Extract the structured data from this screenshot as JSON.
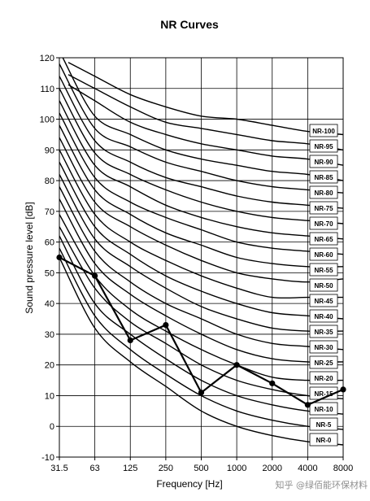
{
  "chart_data": {
    "type": "line",
    "title": "NR Curves",
    "xlabel": "Frequency [Hz]",
    "ylabel": "Sound pressure level [dB]",
    "x_categories": [
      "31.5",
      "63",
      "125",
      "250",
      "500",
      "1000",
      "2000",
      "4000",
      "8000"
    ],
    "ylim": [
      -10,
      120
    ],
    "yticks": [
      -10,
      0,
      10,
      20,
      30,
      40,
      50,
      60,
      70,
      80,
      90,
      100,
      110,
      120
    ],
    "grid": true,
    "nr_curves": [
      {
        "name": "NR-100",
        "values": [
          null,
          114,
          108,
          104,
          101,
          100,
          98,
          96,
          95
        ]
      },
      {
        "name": "NR-95",
        "values": [
          null,
          110,
          104,
          99,
          97,
          95,
          93,
          92,
          90
        ]
      },
      {
        "name": "NR-90",
        "values": [
          null,
          106,
          99,
          95,
          92,
          90,
          88,
          87,
          85
        ]
      },
      {
        "name": "NR-85",
        "values": [
          122,
          101,
          95,
          90,
          87,
          85,
          83,
          82,
          80
        ]
      },
      {
        "name": "NR-80",
        "values": [
          118,
          97,
          91,
          86,
          83,
          80,
          78,
          77,
          76
        ]
      },
      {
        "name": "NR-75",
        "values": [
          114,
          93,
          86,
          81,
          78,
          75,
          73,
          72,
          71
        ]
      },
      {
        "name": "NR-70",
        "values": [
          110,
          89,
          82,
          77,
          73,
          70,
          68,
          67,
          66
        ]
      },
      {
        "name": "NR-65",
        "values": [
          106,
          85,
          78,
          72,
          68,
          65,
          63,
          62,
          61
        ]
      },
      {
        "name": "NR-60",
        "values": [
          102,
          81,
          73,
          68,
          64,
          60,
          58,
          57,
          56
        ]
      },
      {
        "name": "NR-55",
        "values": [
          98,
          77,
          69,
          63,
          59,
          55,
          53,
          52,
          52
        ]
      },
      {
        "name": "NR-50",
        "values": [
          94,
          73,
          65,
          59,
          54,
          50,
          48,
          47,
          48
        ]
      },
      {
        "name": "NR-45",
        "values": [
          90,
          69,
          60,
          54,
          49,
          45,
          42,
          42,
          42
        ]
      },
      {
        "name": "NR-40",
        "values": [
          86,
          65,
          56,
          49,
          44,
          40,
          37,
          36,
          35
        ]
      },
      {
        "name": "NR-35",
        "values": [
          82,
          61,
          52,
          45,
          39,
          35,
          32,
          31,
          31
        ]
      },
      {
        "name": "NR-30",
        "values": [
          78,
          57,
          47,
          40,
          35,
          30,
          27,
          26,
          25
        ]
      },
      {
        "name": "NR-25",
        "values": [
          74,
          53,
          43,
          36,
          30,
          25,
          22,
          21,
          21
        ]
      },
      {
        "name": "NR-20",
        "values": [
          69,
          49,
          38,
          31,
          25,
          20,
          16,
          15,
          15
        ]
      },
      {
        "name": "NR-15",
        "values": [
          65,
          45,
          34,
          27,
          20,
          15,
          12,
          10,
          9
        ]
      },
      {
        "name": "NR-10",
        "values": [
          62,
          40,
          30,
          22,
          15,
          10,
          7,
          5,
          4
        ]
      },
      {
        "name": "NR-5",
        "values": [
          58,
          36,
          25,
          17,
          10,
          5,
          2,
          0,
          -1
        ]
      },
      {
        "name": "NR-0",
        "values": [
          55,
          32,
          21,
          13,
          5,
          0,
          -3,
          -5,
          -6
        ]
      }
    ],
    "measured": {
      "values": [
        55,
        49,
        28,
        33,
        11,
        20,
        14,
        7,
        12
      ]
    }
  },
  "watermark": "知乎 @绿佰能环保材料"
}
